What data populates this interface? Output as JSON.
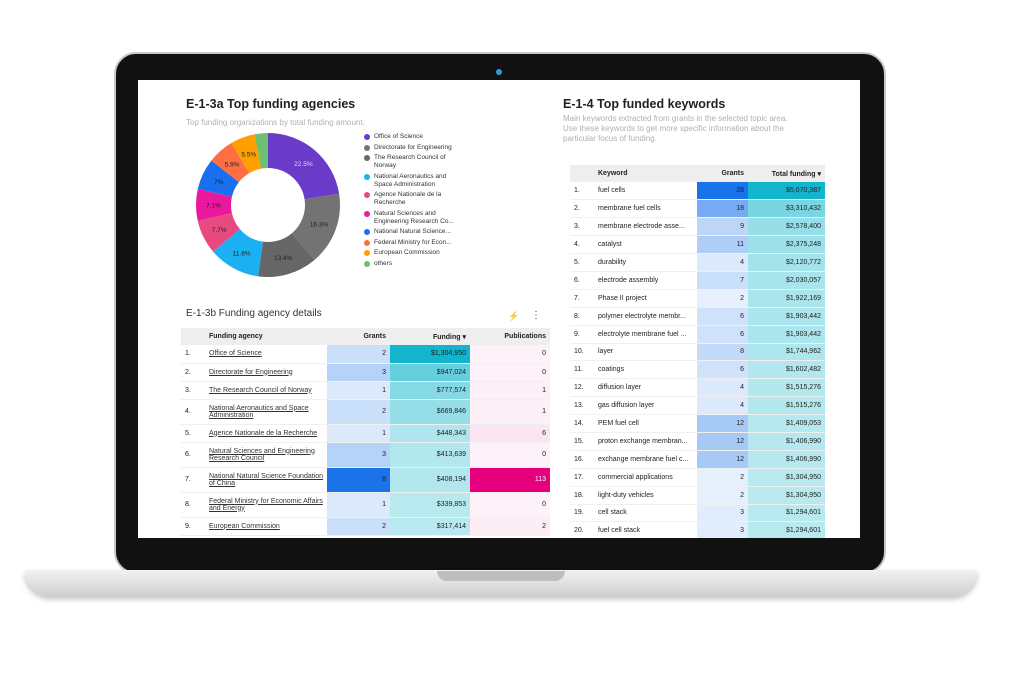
{
  "donut": {
    "title": "E-1-3a Top funding agencies",
    "subtitle": "Top funding organizations by total funding amount.",
    "slices": [
      {
        "name": "Office of Science",
        "value": 22.5,
        "label": "22.5%",
        "color": "#6a3bc9"
      },
      {
        "name": "Directorate for Engineering",
        "value": 16.3,
        "label": "16.3%",
        "color": "#737373"
      },
      {
        "name": "The Research Council of Norway",
        "value": 13.4,
        "label": "13.4%",
        "color": "#666666"
      },
      {
        "name": "National Aeronautics and Space Administration",
        "value": 11.6,
        "label": "11.6%",
        "color": "#1ab0f2"
      },
      {
        "name": "Agence Nationale de la Recherche",
        "value": 7.7,
        "label": "7.7%",
        "color": "#e84a7f"
      },
      {
        "name": "Natural Sciences and Engineering Research Co...",
        "value": 7.1,
        "label": "7.1%",
        "color": "#e8199e"
      },
      {
        "name": "National Natural Science...",
        "value": 7,
        "label": "7%",
        "color": "#1a6ff0"
      },
      {
        "name": "Federal Ministry for Econ...",
        "value": 5.9,
        "label": "5.9%",
        "color": "#ff6e40"
      },
      {
        "name": "European Commission",
        "value": 5.5,
        "label": "5.5%",
        "color": "#ffa000"
      },
      {
        "name": "others",
        "value": 3,
        "label": "",
        "color": "#6cc070"
      }
    ]
  },
  "agencies": {
    "title": "E-1-3b Funding agency details",
    "headers": [
      "Funding agency",
      "Grants",
      "Funding ▾",
      "Publications"
    ],
    "rows": [
      {
        "n": "1.",
        "name": "Office of Science",
        "grants": 2,
        "funding": "$1,304,950",
        "fv": 1304950,
        "pubs": 0
      },
      {
        "n": "2.",
        "name": "Directorate for Engineering",
        "grants": 3,
        "funding": "$947,024",
        "fv": 947024,
        "pubs": 0
      },
      {
        "n": "3.",
        "name": "The Research Council of Norway",
        "grants": 1,
        "funding": "$777,574",
        "fv": 777574,
        "pubs": 1
      },
      {
        "n": "4.",
        "name": "National Aeronautics and Space Administration",
        "grants": 2,
        "funding": "$669,846",
        "fv": 669846,
        "pubs": 1
      },
      {
        "n": "5.",
        "name": "Agence Nationale de la Recherche",
        "grants": 1,
        "funding": "$448,343",
        "fv": 448343,
        "pubs": 6
      },
      {
        "n": "6.",
        "name": "Natural Sciences and Engineering Research Council",
        "grants": 3,
        "funding": "$413,639",
        "fv": 413639,
        "pubs": 0
      },
      {
        "n": "7.",
        "name": "National Natural Science Foundation of China",
        "grants": 8,
        "funding": "$408,194",
        "fv": 408194,
        "pubs": 113
      },
      {
        "n": "8.",
        "name": "Federal Ministry for Economic Affairs and Energy",
        "grants": 1,
        "funding": "$339,853",
        "fv": 339853,
        "pubs": 0
      },
      {
        "n": "9.",
        "name": "European Commission",
        "grants": 2,
        "funding": "$317,414",
        "fv": 317414,
        "pubs": 2
      }
    ]
  },
  "keywords": {
    "title": "E-1-4 Top funded keywords",
    "subtitle": "Main keywords extracted from grants in the selected topic area. Use these keywords to get more specific information about the particular focus of funding.",
    "headers": [
      "Keyword",
      "Grants",
      "Total funding ▾"
    ],
    "rows": [
      {
        "n": "1.",
        "k": "fuel cells",
        "g": 28,
        "f": "$5,070,387",
        "fv": 5070387
      },
      {
        "n": "2.",
        "k": "membrane fuel cells",
        "g": 18,
        "f": "$3,310,432",
        "fv": 3310432
      },
      {
        "n": "3.",
        "k": "membrane electrode asse...",
        "g": 9,
        "f": "$2,578,400",
        "fv": 2578400
      },
      {
        "n": "4.",
        "k": "catalyst",
        "g": 11,
        "f": "$2,375,248",
        "fv": 2375248
      },
      {
        "n": "5.",
        "k": "durability",
        "g": 4,
        "f": "$2,120,772",
        "fv": 2120772
      },
      {
        "n": "6.",
        "k": "electrode assembly",
        "g": 7,
        "f": "$2,030,057",
        "fv": 2030057
      },
      {
        "n": "7.",
        "k": "Phase II project",
        "g": 2,
        "f": "$1,922,169",
        "fv": 1922169
      },
      {
        "n": "8.",
        "k": "polymer electrolyte membr...",
        "g": 6,
        "f": "$1,903,442",
        "fv": 1903442
      },
      {
        "n": "9.",
        "k": "electrolyte membrane fuel ...",
        "g": 6,
        "f": "$1,903,442",
        "fv": 1903442
      },
      {
        "n": "10.",
        "k": "layer",
        "g": 8,
        "f": "$1,744,962",
        "fv": 1744962
      },
      {
        "n": "11.",
        "k": "coatings",
        "g": 6,
        "f": "$1,602,482",
        "fv": 1602482
      },
      {
        "n": "12.",
        "k": "diffusion layer",
        "g": 4,
        "f": "$1,515,276",
        "fv": 1515276
      },
      {
        "n": "13.",
        "k": "gas diffusion layer",
        "g": 4,
        "f": "$1,515,276",
        "fv": 1515276
      },
      {
        "n": "14.",
        "k": "PEM fuel cell",
        "g": 12,
        "f": "$1,409,053",
        "fv": 1409053
      },
      {
        "n": "15.",
        "k": "proton exchange membran...",
        "g": 12,
        "f": "$1,406,990",
        "fv": 1406990
      },
      {
        "n": "16.",
        "k": "exchange membrane fuel c...",
        "g": 12,
        "f": "$1,406,990",
        "fv": 1406990
      },
      {
        "n": "17.",
        "k": "commercial applications",
        "g": 2,
        "f": "$1,304,950",
        "fv": 1304950
      },
      {
        "n": "18.",
        "k": "light-duty vehicles",
        "g": 2,
        "f": "$1,304,950",
        "fv": 1304950
      },
      {
        "n": "19.",
        "k": "cell stack",
        "g": 3,
        "f": "$1,294,601",
        "fv": 1294601
      },
      {
        "n": "20.",
        "k": "fuel cell stack",
        "g": 3,
        "f": "$1,294,601",
        "fv": 1294601
      }
    ]
  },
  "colors": {
    "grants": "#1a73e8",
    "funding": "#12b5cb",
    "publications": "#e6007e"
  }
}
